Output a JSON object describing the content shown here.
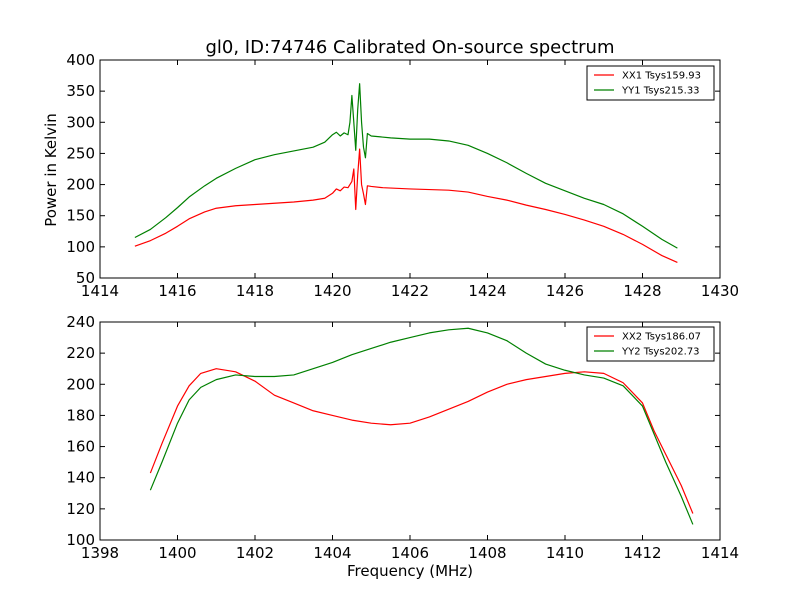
{
  "figure": {
    "background": "#ffffff"
  },
  "chart_data": [
    {
      "type": "line",
      "title": "gl0, ID:74746 Calibrated On-source spectrum",
      "xlabel": "",
      "ylabel": "Power in Kelvin",
      "xlim": [
        1414,
        1430
      ],
      "ylim": [
        50,
        400
      ],
      "xticks": [
        1414,
        1416,
        1418,
        1420,
        1422,
        1424,
        1426,
        1428,
        1430
      ],
      "yticks": [
        50,
        100,
        150,
        200,
        250,
        300,
        350,
        400
      ],
      "legend_position": "top-right",
      "series": [
        {
          "name": "XX1 Tsys159.93",
          "color": "#ff0000",
          "points": [
            [
              1414.9,
              101
            ],
            [
              1415.3,
              110
            ],
            [
              1415.7,
              122
            ],
            [
              1416.0,
              133
            ],
            [
              1416.3,
              145
            ],
            [
              1416.7,
              156
            ],
            [
              1417.0,
              162
            ],
            [
              1417.5,
              166
            ],
            [
              1418.0,
              168
            ],
            [
              1418.5,
              170
            ],
            [
              1419.0,
              172
            ],
            [
              1419.5,
              175
            ],
            [
              1419.8,
              178
            ],
            [
              1420.0,
              186
            ],
            [
              1420.1,
              193
            ],
            [
              1420.2,
              190
            ],
            [
              1420.3,
              196
            ],
            [
              1420.4,
              195
            ],
            [
              1420.5,
              205
            ],
            [
              1420.55,
              225
            ],
            [
              1420.6,
              160
            ],
            [
              1420.65,
              215
            ],
            [
              1420.7,
              257
            ],
            [
              1420.75,
              200
            ],
            [
              1420.8,
              185
            ],
            [
              1420.85,
              168
            ],
            [
              1420.9,
              198
            ],
            [
              1421.0,
              197
            ],
            [
              1421.3,
              195
            ],
            [
              1422.0,
              193
            ],
            [
              1423.0,
              191
            ],
            [
              1423.5,
              188
            ],
            [
              1424.0,
              181
            ],
            [
              1424.5,
              175
            ],
            [
              1425.0,
              167
            ],
            [
              1425.5,
              160
            ],
            [
              1426.0,
              152
            ],
            [
              1426.5,
              143
            ],
            [
              1427.0,
              133
            ],
            [
              1427.5,
              120
            ],
            [
              1428.0,
              104
            ],
            [
              1428.5,
              86
            ],
            [
              1428.9,
              75
            ]
          ]
        },
        {
          "name": "YY1 Tsys215.33",
          "color": "#008000",
          "points": [
            [
              1414.9,
              115
            ],
            [
              1415.3,
              128
            ],
            [
              1415.7,
              147
            ],
            [
              1416.0,
              163
            ],
            [
              1416.3,
              180
            ],
            [
              1416.7,
              198
            ],
            [
              1417.0,
              210
            ],
            [
              1417.5,
              226
            ],
            [
              1418.0,
              240
            ],
            [
              1418.5,
              248
            ],
            [
              1419.0,
              254
            ],
            [
              1419.5,
              260
            ],
            [
              1419.8,
              268
            ],
            [
              1420.0,
              280
            ],
            [
              1420.1,
              284
            ],
            [
              1420.2,
              278
            ],
            [
              1420.3,
              283
            ],
            [
              1420.4,
              280
            ],
            [
              1420.45,
              300
            ],
            [
              1420.5,
              343
            ],
            [
              1420.55,
              300
            ],
            [
              1420.6,
              255
            ],
            [
              1420.65,
              320
            ],
            [
              1420.7,
              362
            ],
            [
              1420.75,
              300
            ],
            [
              1420.8,
              260
            ],
            [
              1420.85,
              243
            ],
            [
              1420.9,
              282
            ],
            [
              1421.0,
              278
            ],
            [
              1421.5,
              275
            ],
            [
              1422.0,
              273
            ],
            [
              1422.5,
              273
            ],
            [
              1423.0,
              270
            ],
            [
              1423.5,
              263
            ],
            [
              1424.0,
              250
            ],
            [
              1424.5,
              235
            ],
            [
              1425.0,
              218
            ],
            [
              1425.5,
              202
            ],
            [
              1426.0,
              190
            ],
            [
              1426.5,
              178
            ],
            [
              1427.0,
              168
            ],
            [
              1427.5,
              153
            ],
            [
              1428.0,
              133
            ],
            [
              1428.5,
              112
            ],
            [
              1428.9,
              98
            ]
          ]
        }
      ]
    },
    {
      "type": "line",
      "title": "",
      "xlabel": "Frequency (MHz)",
      "ylabel": "",
      "xlim": [
        1398,
        1414
      ],
      "ylim": [
        100,
        240
      ],
      "xticks": [
        1398,
        1400,
        1402,
        1404,
        1406,
        1408,
        1410,
        1412,
        1414
      ],
      "yticks": [
        100,
        120,
        140,
        160,
        180,
        200,
        220,
        240
      ],
      "legend_position": "top-right",
      "series": [
        {
          "name": "XX2 Tsys186.07",
          "color": "#ff0000",
          "points": [
            [
              1399.3,
              143
            ],
            [
              1399.6,
              162
            ],
            [
              1400.0,
              186
            ],
            [
              1400.3,
              199
            ],
            [
              1400.6,
              207
            ],
            [
              1401.0,
              210
            ],
            [
              1401.5,
              208
            ],
            [
              1402.0,
              202
            ],
            [
              1402.5,
              193
            ],
            [
              1403.0,
              188
            ],
            [
              1403.5,
              183
            ],
            [
              1404.0,
              180
            ],
            [
              1404.5,
              177
            ],
            [
              1405.0,
              175
            ],
            [
              1405.5,
              174
            ],
            [
              1406.0,
              175
            ],
            [
              1406.5,
              179
            ],
            [
              1407.0,
              184
            ],
            [
              1407.5,
              189
            ],
            [
              1408.0,
              195
            ],
            [
              1408.5,
              200
            ],
            [
              1409.0,
              203
            ],
            [
              1409.5,
              205
            ],
            [
              1410.0,
              207
            ],
            [
              1410.5,
              208
            ],
            [
              1411.0,
              207
            ],
            [
              1411.5,
              201
            ],
            [
              1412.0,
              188
            ],
            [
              1412.3,
              170
            ],
            [
              1412.6,
              155
            ],
            [
              1413.0,
              135
            ],
            [
              1413.3,
              117
            ]
          ]
        },
        {
          "name": "YY2 Tsys202.73",
          "color": "#008000",
          "points": [
            [
              1399.3,
              132
            ],
            [
              1399.6,
              150
            ],
            [
              1400.0,
              175
            ],
            [
              1400.3,
              190
            ],
            [
              1400.6,
              198
            ],
            [
              1401.0,
              203
            ],
            [
              1401.5,
              206
            ],
            [
              1402.0,
              205
            ],
            [
              1402.5,
              205
            ],
            [
              1403.0,
              206
            ],
            [
              1403.5,
              210
            ],
            [
              1404.0,
              214
            ],
            [
              1404.5,
              219
            ],
            [
              1405.0,
              223
            ],
            [
              1405.5,
              227
            ],
            [
              1406.0,
              230
            ],
            [
              1406.5,
              233
            ],
            [
              1407.0,
              235
            ],
            [
              1407.5,
              236
            ],
            [
              1408.0,
              233
            ],
            [
              1408.5,
              228
            ],
            [
              1409.0,
              220
            ],
            [
              1409.5,
              213
            ],
            [
              1410.0,
              209
            ],
            [
              1410.5,
              206
            ],
            [
              1411.0,
              204
            ],
            [
              1411.5,
              199
            ],
            [
              1412.0,
              186
            ],
            [
              1412.3,
              168
            ],
            [
              1412.6,
              150
            ],
            [
              1413.0,
              128
            ],
            [
              1413.3,
              110
            ]
          ]
        }
      ]
    }
  ]
}
